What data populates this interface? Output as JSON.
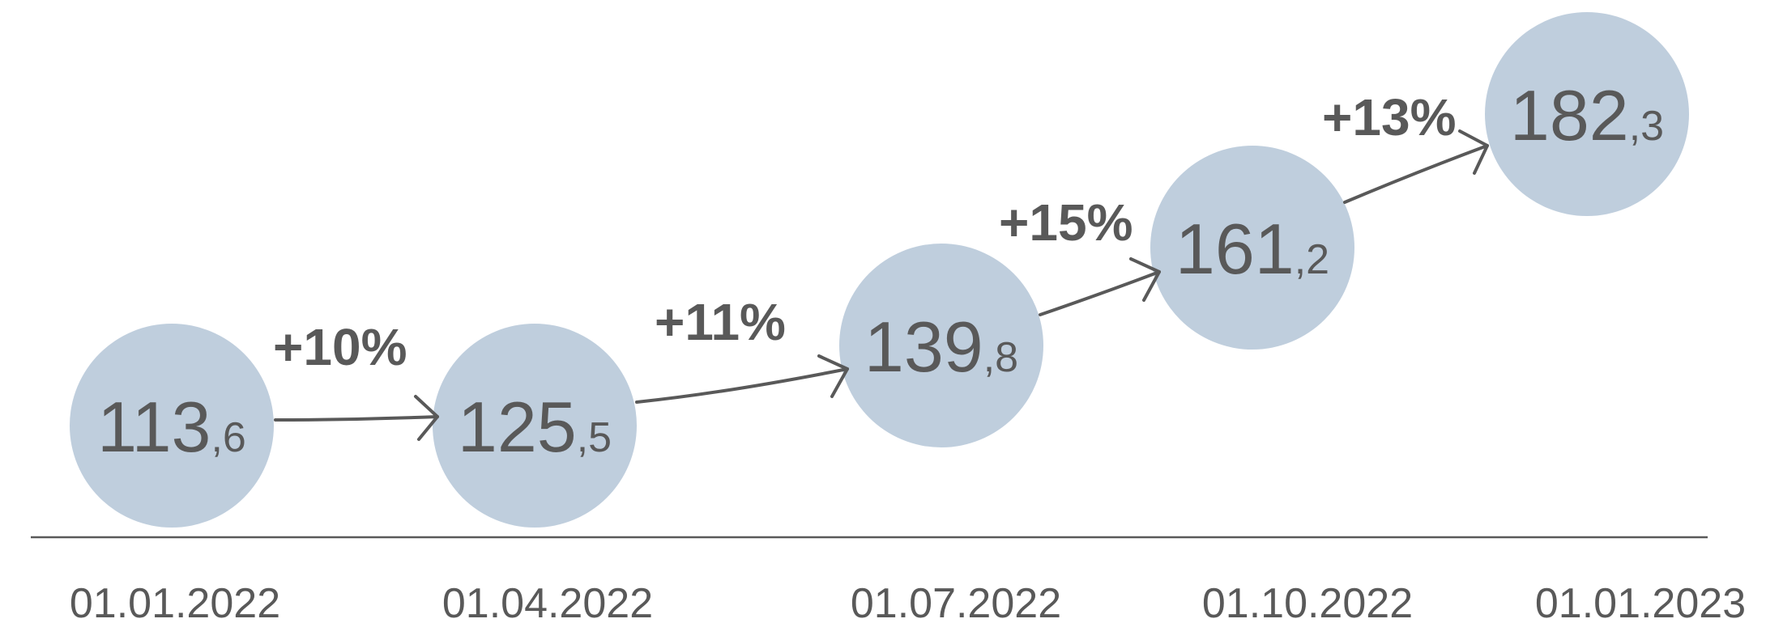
{
  "chart_data": {
    "type": "bubble-timeline",
    "title": "",
    "colors": {
      "bubble": "#bfcedd",
      "text": "#595959",
      "axis": "#595959"
    },
    "points": [
      {
        "date": "01.01.2022",
        "int": "113",
        "dec": ",6",
        "value": 113.6
      },
      {
        "date": "01.04.2022",
        "int": "125",
        "dec": ",5",
        "value": 125.5
      },
      {
        "date": "01.07.2022",
        "int": "139",
        "dec": ",8",
        "value": 139.8
      },
      {
        "date": "01.10.2022",
        "int": "161",
        "dec": ",2",
        "value": 161.2
      },
      {
        "date": "01.01.2023",
        "int": "182",
        "dec": ",3",
        "value": 182.3
      }
    ],
    "changes": [
      "+10%",
      "+11%",
      "+15%",
      "+13%"
    ]
  }
}
